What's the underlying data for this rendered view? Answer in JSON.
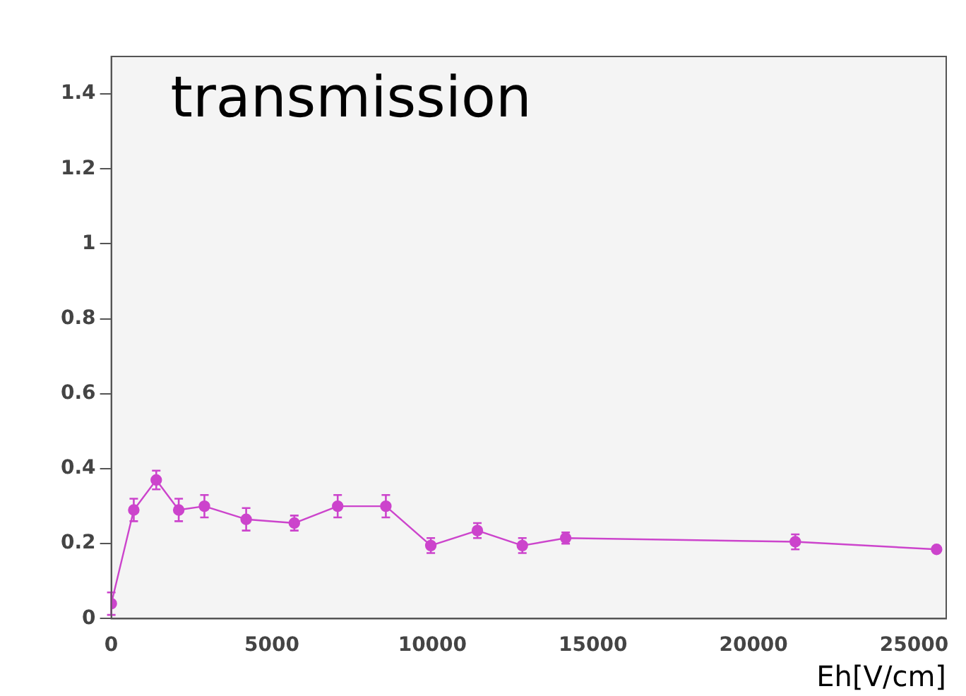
{
  "chart_data": {
    "type": "line",
    "title": "transmission",
    "xlabel": "Eh[V/cm]",
    "x": [
      0,
      700,
      1400,
      2100,
      2900,
      4200,
      5700,
      7050,
      8550,
      9950,
      11400,
      12800,
      14150,
      21300,
      25700
    ],
    "series": [
      {
        "color": "#cc44cc",
        "values": [
          0.04,
          0.29,
          0.37,
          0.29,
          0.3,
          0.265,
          0.255,
          0.3,
          0.3,
          0.195,
          0.235,
          0.195,
          0.215,
          0.205,
          0.185
        ],
        "errors": [
          0.03,
          0.03,
          0.025,
          0.03,
          0.03,
          0.03,
          0.02,
          0.03,
          0.03,
          0.02,
          0.02,
          0.02,
          0.015,
          0.02,
          null
        ]
      }
    ],
    "xlim": [
      0,
      26000
    ],
    "xticks": [
      0,
      5000,
      10000,
      15000,
      20000,
      25000
    ],
    "ylim": [
      0,
      1.5
    ],
    "yticks": [
      0,
      0.2,
      0.4,
      0.6,
      0.8,
      1,
      1.2,
      1.4
    ],
    "grid": false,
    "legend": false,
    "marker": "circle",
    "line_style": "solid"
  }
}
